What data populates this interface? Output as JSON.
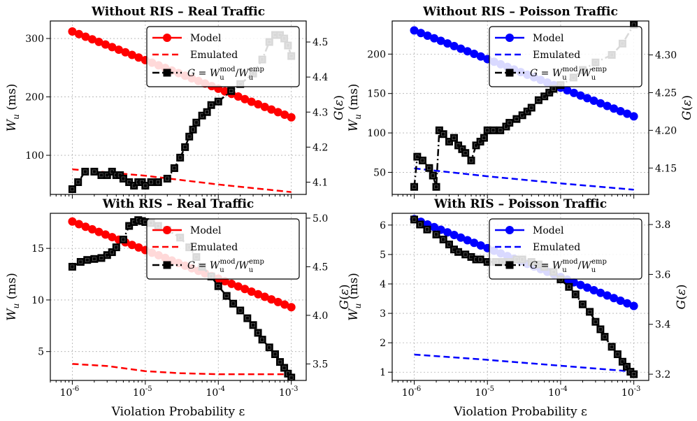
{
  "figure": {
    "xlabel": "Violation Probability ε",
    "x_tick_labels": [
      {
        "exp": "-6",
        "base": "10",
        "value": 1e-06
      },
      {
        "exp": "-5",
        "base": "10",
        "value": 1e-05
      },
      {
        "exp": "-4",
        "base": "10",
        "value": 0.0001
      },
      {
        "exp": "-3",
        "base": "10",
        "value": 0.001
      }
    ]
  },
  "legend": {
    "model": "Model",
    "emulated": "Emulated",
    "ratio": "G = W_u^mod / W_u^emp"
  },
  "chart_data": [
    {
      "type": "line",
      "title": "Without RIS – Real Traffic",
      "xscale": "log",
      "xlim": [
        5e-07,
        0.0016
      ],
      "ylabel": "W_u (ms)",
      "ylim": [
        33,
        330
      ],
      "yticks": [
        100,
        200,
        300
      ],
      "y2label": "G(ε)",
      "y2lim": [
        4.065,
        4.56
      ],
      "y2ticks": [
        4.1,
        4.2,
        4.3,
        4.4,
        4.5
      ],
      "grid": true,
      "legend_position": "top-right",
      "color": "#ff0000",
      "series": [
        {
          "name": "Model",
          "axis": "left",
          "color": "#ff0000",
          "style": "solid-circle",
          "x_range": [
            1e-06,
            0.001
          ],
          "y_range": [
            312,
            165
          ]
        },
        {
          "name": "Emulated",
          "axis": "left",
          "color": "#ff0000",
          "style": "dashed",
          "x": [
            1e-06,
            1e-05,
            0.0001,
            0.001
          ],
          "y": [
            76,
            65,
            50,
            37
          ]
        },
        {
          "name": "G = W_u^mod / W_u^emp",
          "axis": "right",
          "color": "#000000",
          "style": "dashdot-square",
          "x": [
            1e-06,
            1.2e-06,
            1.5e-06,
            2e-06,
            2.5e-06,
            3e-06,
            3.5e-06,
            4e-06,
            4.5e-06,
            5e-06,
            6e-06,
            7e-06,
            8e-06,
            9e-06,
            1e-05,
            1.2e-05,
            1.5e-05,
            2e-05,
            2.5e-05,
            3e-05,
            3.5e-05,
            4e-05,
            4.5e-05,
            5e-05,
            6e-05,
            7e-05,
            8e-05,
            0.0001,
            0.00015,
            0.0002,
            0.0003,
            0.0004,
            0.0005,
            0.0006,
            0.0007,
            0.0008,
            0.0009,
            0.001
          ],
          "y": [
            4.08,
            4.1,
            4.13,
            4.13,
            4.12,
            4.12,
            4.13,
            4.12,
            4.12,
            4.11,
            4.1,
            4.09,
            4.1,
            4.1,
            4.09,
            4.1,
            4.1,
            4.11,
            4.14,
            4.17,
            4.2,
            4.23,
            4.25,
            4.27,
            4.29,
            4.3,
            4.32,
            4.33,
            4.36,
            4.38,
            4.41,
            4.45,
            4.5,
            4.52,
            4.52,
            4.51,
            4.49,
            4.46
          ]
        }
      ]
    },
    {
      "type": "line",
      "title": "Without RIS – Poisson Traffic",
      "xscale": "log",
      "xlim": [
        5e-07,
        0.0016
      ],
      "ylabel": "W_u (ms)",
      "ylim": [
        22,
        242
      ],
      "yticks": [
        50,
        100,
        150,
        200
      ],
      "y2label": "G(ε)",
      "y2lim": [
        4.115,
        4.345
      ],
      "y2ticks": [
        4.15,
        4.2,
        4.25,
        4.3
      ],
      "grid": true,
      "legend_position": "top-right",
      "color": "#0000ff",
      "series": [
        {
          "name": "Model",
          "axis": "left",
          "color": "#0000ff",
          "style": "solid-circle",
          "x_range": [
            1e-06,
            0.001
          ],
          "y_range": [
            230,
            121
          ]
        },
        {
          "name": "Emulated",
          "axis": "left",
          "color": "#0000ff",
          "style": "dashed",
          "x": [
            1e-06,
            1e-05,
            0.0001,
            0.001
          ],
          "y": [
            55,
            45,
            36,
            28
          ]
        },
        {
          "name": "G = W_u^mod / W_u^emp",
          "axis": "right",
          "color": "#000000",
          "style": "dashdot-square",
          "x": [
            1e-06,
            1.1e-06,
            1.3e-06,
            1.6e-06,
            1.8e-06,
            2e-06,
            2.2e-06,
            2.5e-06,
            3e-06,
            3.5e-06,
            4e-06,
            4.5e-06,
            5e-06,
            6e-06,
            7e-06,
            8e-06,
            9e-06,
            1e-05,
            1.2e-05,
            1.5e-05,
            1.8e-05,
            2e-05,
            2.5e-05,
            3e-05,
            3.5e-05,
            4e-05,
            5e-05,
            6e-05,
            7e-05,
            8e-05,
            0.0001,
            0.00015,
            0.0002,
            0.0003,
            0.0005,
            0.0007,
            0.001
          ],
          "y": [
            4.125,
            4.165,
            4.16,
            4.15,
            4.14,
            4.125,
            4.2,
            4.195,
            4.185,
            4.19,
            4.18,
            4.175,
            4.17,
            4.16,
            4.18,
            4.185,
            4.19,
            4.2,
            4.2,
            4.2,
            4.205,
            4.21,
            4.215,
            4.22,
            4.225,
            4.23,
            4.24,
            4.245,
            4.25,
            4.255,
            4.26,
            4.27,
            4.28,
            4.29,
            4.3,
            4.315,
            4.34
          ]
        }
      ]
    },
    {
      "type": "line",
      "title": "With RIS – Real Traffic",
      "xscale": "log",
      "xlim": [
        5e-07,
        0.0016
      ],
      "ylabel": "W_u (ms)",
      "ylim": [
        2.2,
        18.4
      ],
      "yticks": [
        5,
        10,
        15
      ],
      "y2label": "G(ε)",
      "y2lim": [
        3.33,
        5.05
      ],
      "y2ticks": [
        3.5,
        4.0,
        4.5,
        5.0
      ],
      "grid": true,
      "legend_position": "top-right",
      "color": "#ff0000",
      "series": [
        {
          "name": "Model",
          "axis": "left",
          "color": "#ff0000",
          "style": "solid-circle",
          "x_range": [
            1e-06,
            0.001
          ],
          "y_range": [
            17.6,
            9.3
          ]
        },
        {
          "name": "Emulated",
          "axis": "left",
          "color": "#ff0000",
          "style": "dashed",
          "x": [
            1e-06,
            3e-06,
            1e-05,
            3e-05,
            0.0001,
            0.0003,
            0.001
          ],
          "y": [
            3.8,
            3.6,
            3.1,
            2.9,
            2.8,
            2.8,
            2.8
          ]
        },
        {
          "name": "G = W_u^mod / W_u^emp",
          "axis": "right",
          "color": "#000000",
          "style": "dashdot-square",
          "x": [
            1e-06,
            1.3e-06,
            1.6e-06,
            2e-06,
            2.5e-06,
            3e-06,
            3.5e-06,
            4e-06,
            5e-06,
            6e-06,
            7e-06,
            8e-06,
            9e-06,
            1e-05,
            1.2e-05,
            1.5e-05,
            2e-05,
            3e-05,
            4e-05,
            5e-05,
            6e-05,
            8e-05,
            0.0001,
            0.00013,
            0.00016,
            0.0002,
            0.00025,
            0.0003,
            0.00035,
            0.0004,
            0.0005,
            0.0006,
            0.0007,
            0.0008,
            0.0009,
            0.001
          ],
          "y": [
            4.5,
            4.55,
            4.57,
            4.58,
            4.59,
            4.62,
            4.65,
            4.7,
            4.78,
            4.92,
            4.96,
            4.98,
            4.97,
            4.96,
            4.95,
            4.92,
            4.88,
            4.8,
            4.7,
            4.6,
            4.5,
            4.4,
            4.3,
            4.2,
            4.12,
            4.05,
            3.97,
            3.9,
            3.82,
            3.75,
            3.67,
            3.6,
            3.52,
            3.46,
            3.4,
            3.36
          ]
        }
      ]
    },
    {
      "type": "line",
      "title": "With RIS – Poisson Traffic",
      "xscale": "log",
      "xlim": [
        5e-07,
        0.0016
      ],
      "ylabel": "W_u (ms)",
      "ylim": [
        0.72,
        6.4
      ],
      "yticks": [
        1,
        2,
        3,
        4,
        5,
        6
      ],
      "y2label": "G(ε)",
      "y2lim": [
        3.175,
        3.845
      ],
      "y2ticks": [
        3.2,
        3.4,
        3.6,
        3.8
      ],
      "grid": true,
      "legend_position": "top-right",
      "color": "#0000ff",
      "series": [
        {
          "name": "Model",
          "axis": "left",
          "color": "#0000ff",
          "style": "solid-circle",
          "x_range": [
            1e-06,
            0.001
          ],
          "y_range": [
            6.2,
            3.25
          ]
        },
        {
          "name": "Emulated",
          "axis": "left",
          "color": "#0000ff",
          "style": "dashed",
          "x": [
            1e-06,
            1e-05,
            0.0001,
            0.001
          ],
          "y": [
            1.6,
            1.42,
            1.22,
            1.02
          ]
        },
        {
          "name": "G = W_u^mod / W_u^emp",
          "axis": "right",
          "color": "#000000",
          "style": "dashdot-square",
          "x": [
            1e-06,
            1.2e-06,
            1.5e-06,
            2e-06,
            2.5e-06,
            3e-06,
            3.5e-06,
            4e-06,
            5e-06,
            6e-06,
            7e-06,
            8e-06,
            1e-05,
            1.3e-05,
            1.6e-05,
            2e-05,
            2.5e-05,
            3e-05,
            4e-05,
            5e-05,
            6e-05,
            8e-05,
            0.0001,
            0.00013,
            0.00016,
            0.0002,
            0.00025,
            0.0003,
            0.00035,
            0.0004,
            0.0005,
            0.0006,
            0.0007,
            0.0008,
            0.0009,
            0.001
          ],
          "y": [
            3.82,
            3.8,
            3.78,
            3.76,
            3.74,
            3.72,
            3.7,
            3.69,
            3.68,
            3.67,
            3.66,
            3.66,
            3.65,
            3.65,
            3.65,
            3.65,
            3.66,
            3.66,
            3.65,
            3.64,
            3.63,
            3.61,
            3.58,
            3.55,
            3.52,
            3.48,
            3.45,
            3.41,
            3.38,
            3.35,
            3.31,
            3.28,
            3.25,
            3.23,
            3.21,
            3.2
          ]
        }
      ]
    }
  ]
}
